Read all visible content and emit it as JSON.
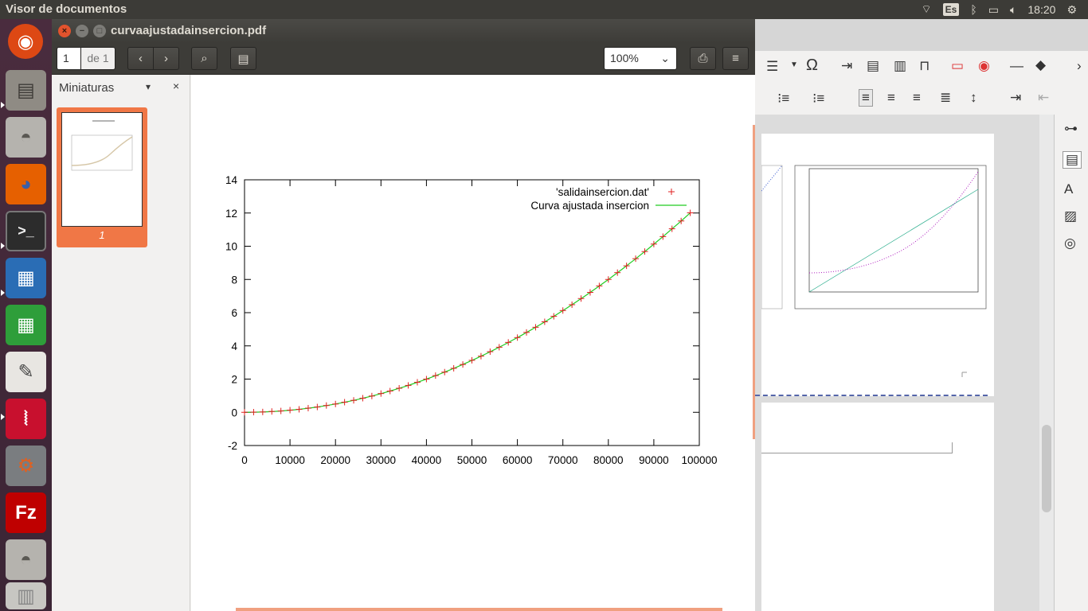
{
  "top_panel": {
    "app_title": "Visor de documentos",
    "keyboard_layout": "Es",
    "clock": "18:20"
  },
  "launcher": {
    "items": [
      {
        "name": "ubuntu-dash-icon",
        "glyph": "◉"
      },
      {
        "name": "files-icon",
        "glyph": "▤"
      },
      {
        "name": "disk-icon",
        "glyph": "◓"
      },
      {
        "name": "firefox-icon",
        "glyph": "◕"
      },
      {
        "name": "terminal-icon",
        "glyph": ">_"
      },
      {
        "name": "writer-icon",
        "glyph": "▦"
      },
      {
        "name": "calc-icon",
        "glyph": "▦"
      },
      {
        "name": "text-editor-icon",
        "glyph": "✎"
      },
      {
        "name": "evince-icon",
        "glyph": "⦚"
      },
      {
        "name": "settings-icon",
        "glyph": "⚙"
      },
      {
        "name": "filezilla-icon",
        "glyph": "Fz"
      },
      {
        "name": "disk2-icon",
        "glyph": "◓"
      },
      {
        "name": "trash-icon",
        "glyph": "▥"
      }
    ]
  },
  "window": {
    "title": "curvaajustadainsercion.pdf"
  },
  "toolbar": {
    "page_current": "1",
    "page_total": "de 1",
    "zoom": "100%"
  },
  "sidepane": {
    "title": "Miniaturas",
    "thumb_label": "1"
  },
  "colors": {
    "accent": "#f07746",
    "points": "#e02020",
    "fit_line": "#22cc22"
  },
  "chart_data": {
    "type": "scatter",
    "title": "",
    "xlabel": "",
    "ylabel": "",
    "xlim": [
      0,
      100000
    ],
    "ylim": [
      -2,
      14
    ],
    "x_ticks": [
      "0",
      "10000",
      "20000",
      "30000",
      "40000",
      "50000",
      "60000",
      "70000",
      "80000",
      "90000",
      "100000"
    ],
    "y_ticks": [
      "-2",
      "0",
      "2",
      "4",
      "6",
      "8",
      "10",
      "12",
      "14"
    ],
    "legend_position": "top-right",
    "series": [
      {
        "name": "'salidainsercion.dat'",
        "style": "points-plus",
        "x": [
          0,
          2000,
          4000,
          6000,
          8000,
          10000,
          12000,
          14000,
          16000,
          18000,
          20000,
          22000,
          24000,
          26000,
          28000,
          30000,
          32000,
          34000,
          36000,
          38000,
          40000,
          42000,
          44000,
          46000,
          48000,
          50000,
          52000,
          54000,
          56000,
          58000,
          60000,
          62000,
          64000,
          66000,
          68000,
          70000,
          72000,
          74000,
          76000,
          78000,
          80000,
          82000,
          84000,
          86000,
          88000,
          90000,
          92000,
          94000,
          96000,
          98000
        ],
        "y": [
          0.0,
          0.01,
          0.02,
          0.05,
          0.08,
          0.13,
          0.18,
          0.25,
          0.32,
          0.41,
          0.5,
          0.61,
          0.72,
          0.85,
          0.98,
          1.13,
          1.28,
          1.45,
          1.62,
          1.81,
          2.0,
          2.21,
          2.42,
          2.65,
          2.88,
          3.13,
          3.38,
          3.65,
          3.92,
          4.21,
          4.5,
          4.81,
          5.12,
          5.45,
          5.78,
          6.13,
          6.48,
          6.85,
          7.22,
          7.61,
          8.0,
          8.41,
          8.82,
          9.25,
          9.68,
          10.13,
          10.58,
          11.05,
          11.52,
          12.01
        ]
      },
      {
        "name": "Curva ajustada insercion",
        "style": "line",
        "coefficient": 1.25e-09
      }
    ]
  }
}
